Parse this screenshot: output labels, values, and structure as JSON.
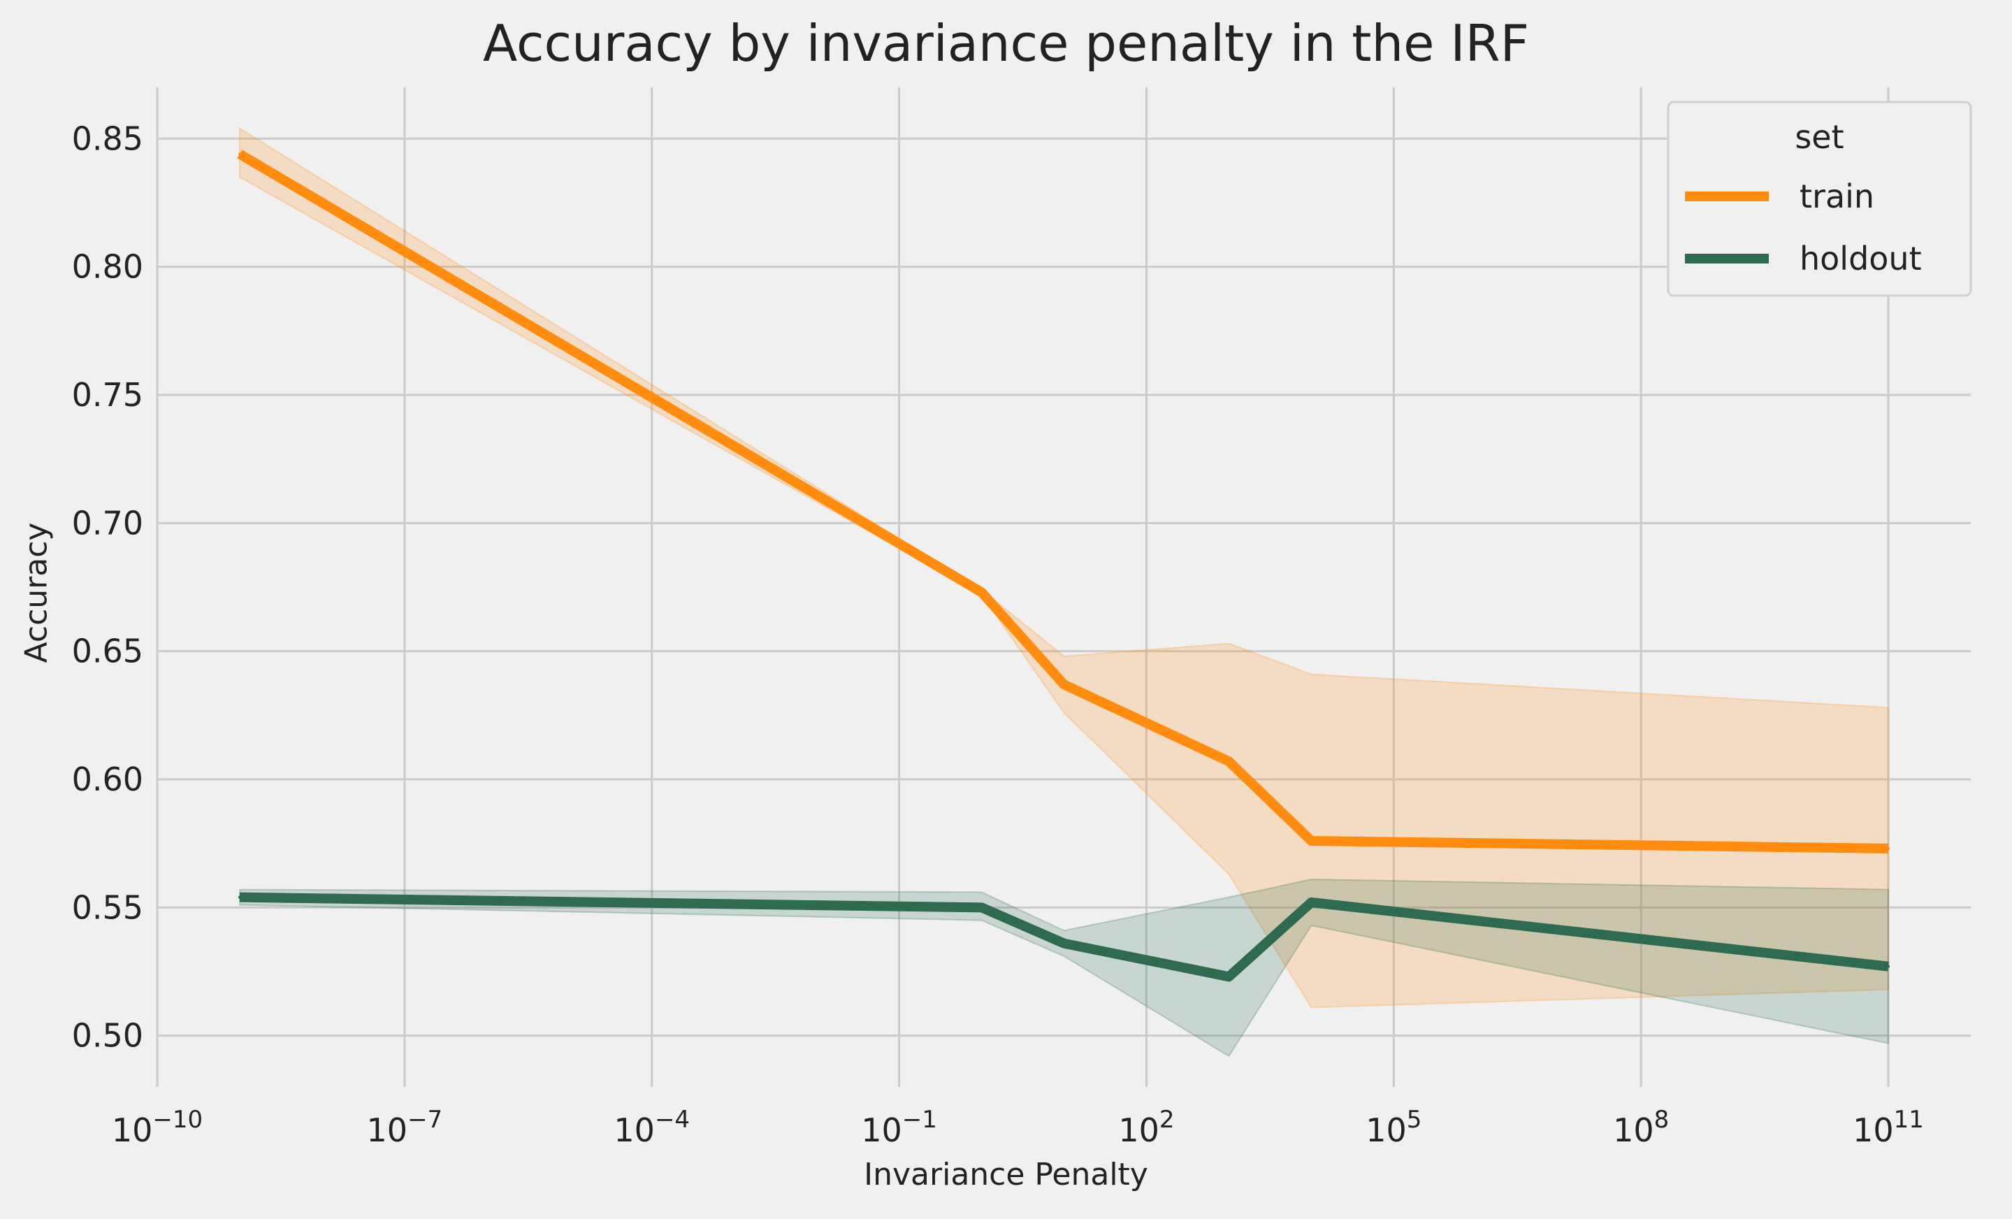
{
  "chart_data": {
    "type": "line",
    "title": "Accuracy by invariance penalty in the IRF",
    "xlabel": "Invariance Penalty",
    "ylabel": "Accuracy",
    "xscale": "log",
    "xlim": [
      1e-10,
      1000000000000.0
    ],
    "ylim": [
      0.48,
      0.87
    ],
    "grid": true,
    "x_ticks": [
      {
        "exp": -10,
        "base": "10",
        "sup": "−10"
      },
      {
        "exp": -7,
        "base": "10",
        "sup": "−7"
      },
      {
        "exp": -4,
        "base": "10",
        "sup": "−4"
      },
      {
        "exp": -1,
        "base": "10",
        "sup": "−1"
      },
      {
        "exp": 2,
        "base": "10",
        "sup": "2"
      },
      {
        "exp": 5,
        "base": "10",
        "sup": "5"
      },
      {
        "exp": 8,
        "base": "10",
        "sup": "8"
      },
      {
        "exp": 11,
        "base": "10",
        "sup": "11"
      }
    ],
    "y_ticks": [
      0.5,
      0.55,
      0.6,
      0.65,
      0.7,
      0.75,
      0.8,
      0.85
    ],
    "y_tick_labels": [
      "0.50",
      "0.55",
      "0.60",
      "0.65",
      "0.70",
      "0.75",
      "0.80",
      "0.85"
    ],
    "legend": {
      "title": "set",
      "position": "top-right"
    },
    "series": [
      {
        "name": "train",
        "color": "#ff8c0f",
        "x": [
          1e-09,
          1,
          10,
          1000,
          10000,
          100000000000.0
        ],
        "y": [
          0.844,
          0.673,
          0.637,
          0.607,
          0.576,
          0.573
        ],
        "ci_low": [
          0.835,
          0.672,
          0.626,
          0.563,
          0.511,
          0.518
        ],
        "ci_high": [
          0.854,
          0.674,
          0.648,
          0.653,
          0.641,
          0.628
        ]
      },
      {
        "name": "holdout",
        "color": "#2d6a4f",
        "x": [
          1e-09,
          1,
          10,
          1000,
          10000,
          100000000000.0
        ],
        "y": [
          0.554,
          0.55,
          0.536,
          0.523,
          0.552,
          0.527
        ],
        "ci_low": [
          0.551,
          0.545,
          0.531,
          0.492,
          0.543,
          0.497
        ],
        "ci_high": [
          0.557,
          0.556,
          0.541,
          0.554,
          0.561,
          0.557
        ]
      }
    ]
  }
}
